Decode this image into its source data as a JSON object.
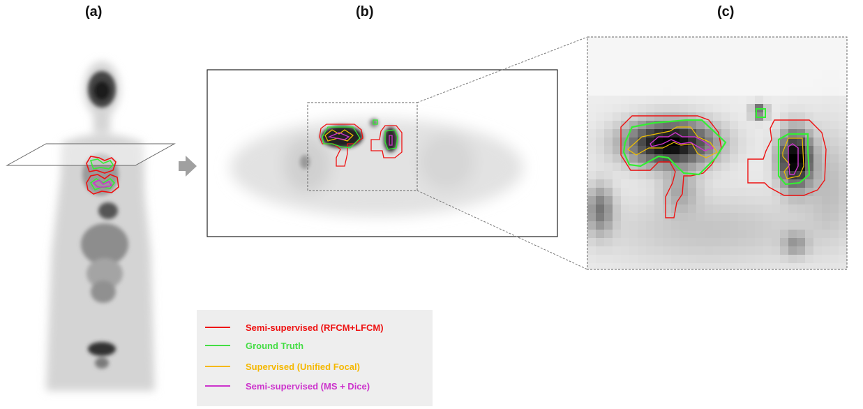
{
  "panels": {
    "a": "(a)",
    "b": "(b)",
    "c": "(c)"
  },
  "legend": {
    "items": [
      {
        "label": "Semi-supervised (RFCM+LFCM)",
        "color": "#ee1111"
      },
      {
        "label": "Ground Truth",
        "color": "#44dd44"
      },
      {
        "label": "Supervised (Unified Focal)",
        "color": "#f5b800"
      },
      {
        "label": "Semi-supervised (MS + Dice)",
        "color": "#cc33cc"
      }
    ]
  },
  "contour_colors": {
    "red": "#ee1111",
    "green": "#33ee33",
    "yellow": "#f0c000",
    "magenta": "#cc33cc"
  }
}
